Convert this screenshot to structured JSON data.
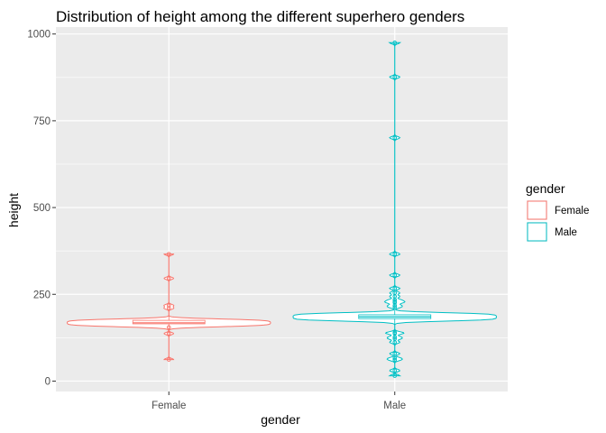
{
  "chart_data": {
    "type": "violin",
    "title": "Distribution of height among the different superhero genders",
    "xlabel": "gender",
    "ylabel": "height",
    "categories": [
      "Female",
      "Male"
    ],
    "ylim": [
      -30,
      1020
    ],
    "yticks": [
      0,
      250,
      500,
      750,
      1000
    ],
    "grid": true,
    "legend": {
      "title": "gender",
      "placement": "right",
      "entries": [
        "Female",
        "Male"
      ]
    },
    "colors": {
      "Female": "#F8766D",
      "Male": "#00BFC4",
      "panel": "#EBEBEB",
      "grid": "#FFFFFF"
    },
    "series": [
      {
        "name": "Female",
        "range": [
          62,
          366
        ],
        "points": [
          62,
          137,
          155,
          210,
          218,
          296,
          366
        ],
        "boxplot": {
          "q1": 165,
          "median": 168,
          "q3": 175
        }
      },
      {
        "name": "Male",
        "range": [
          15.2,
          975
        ],
        "points": [
          15.2,
          30.5,
          61,
          66,
          79,
          112,
          122,
          127,
          137,
          140,
          213,
          218,
          226,
          229,
          234,
          244,
          254,
          267,
          305,
          366,
          701,
          876,
          975
        ],
        "boxplot": {
          "q1": 180,
          "median": 185,
          "q3": 191
        }
      }
    ]
  }
}
